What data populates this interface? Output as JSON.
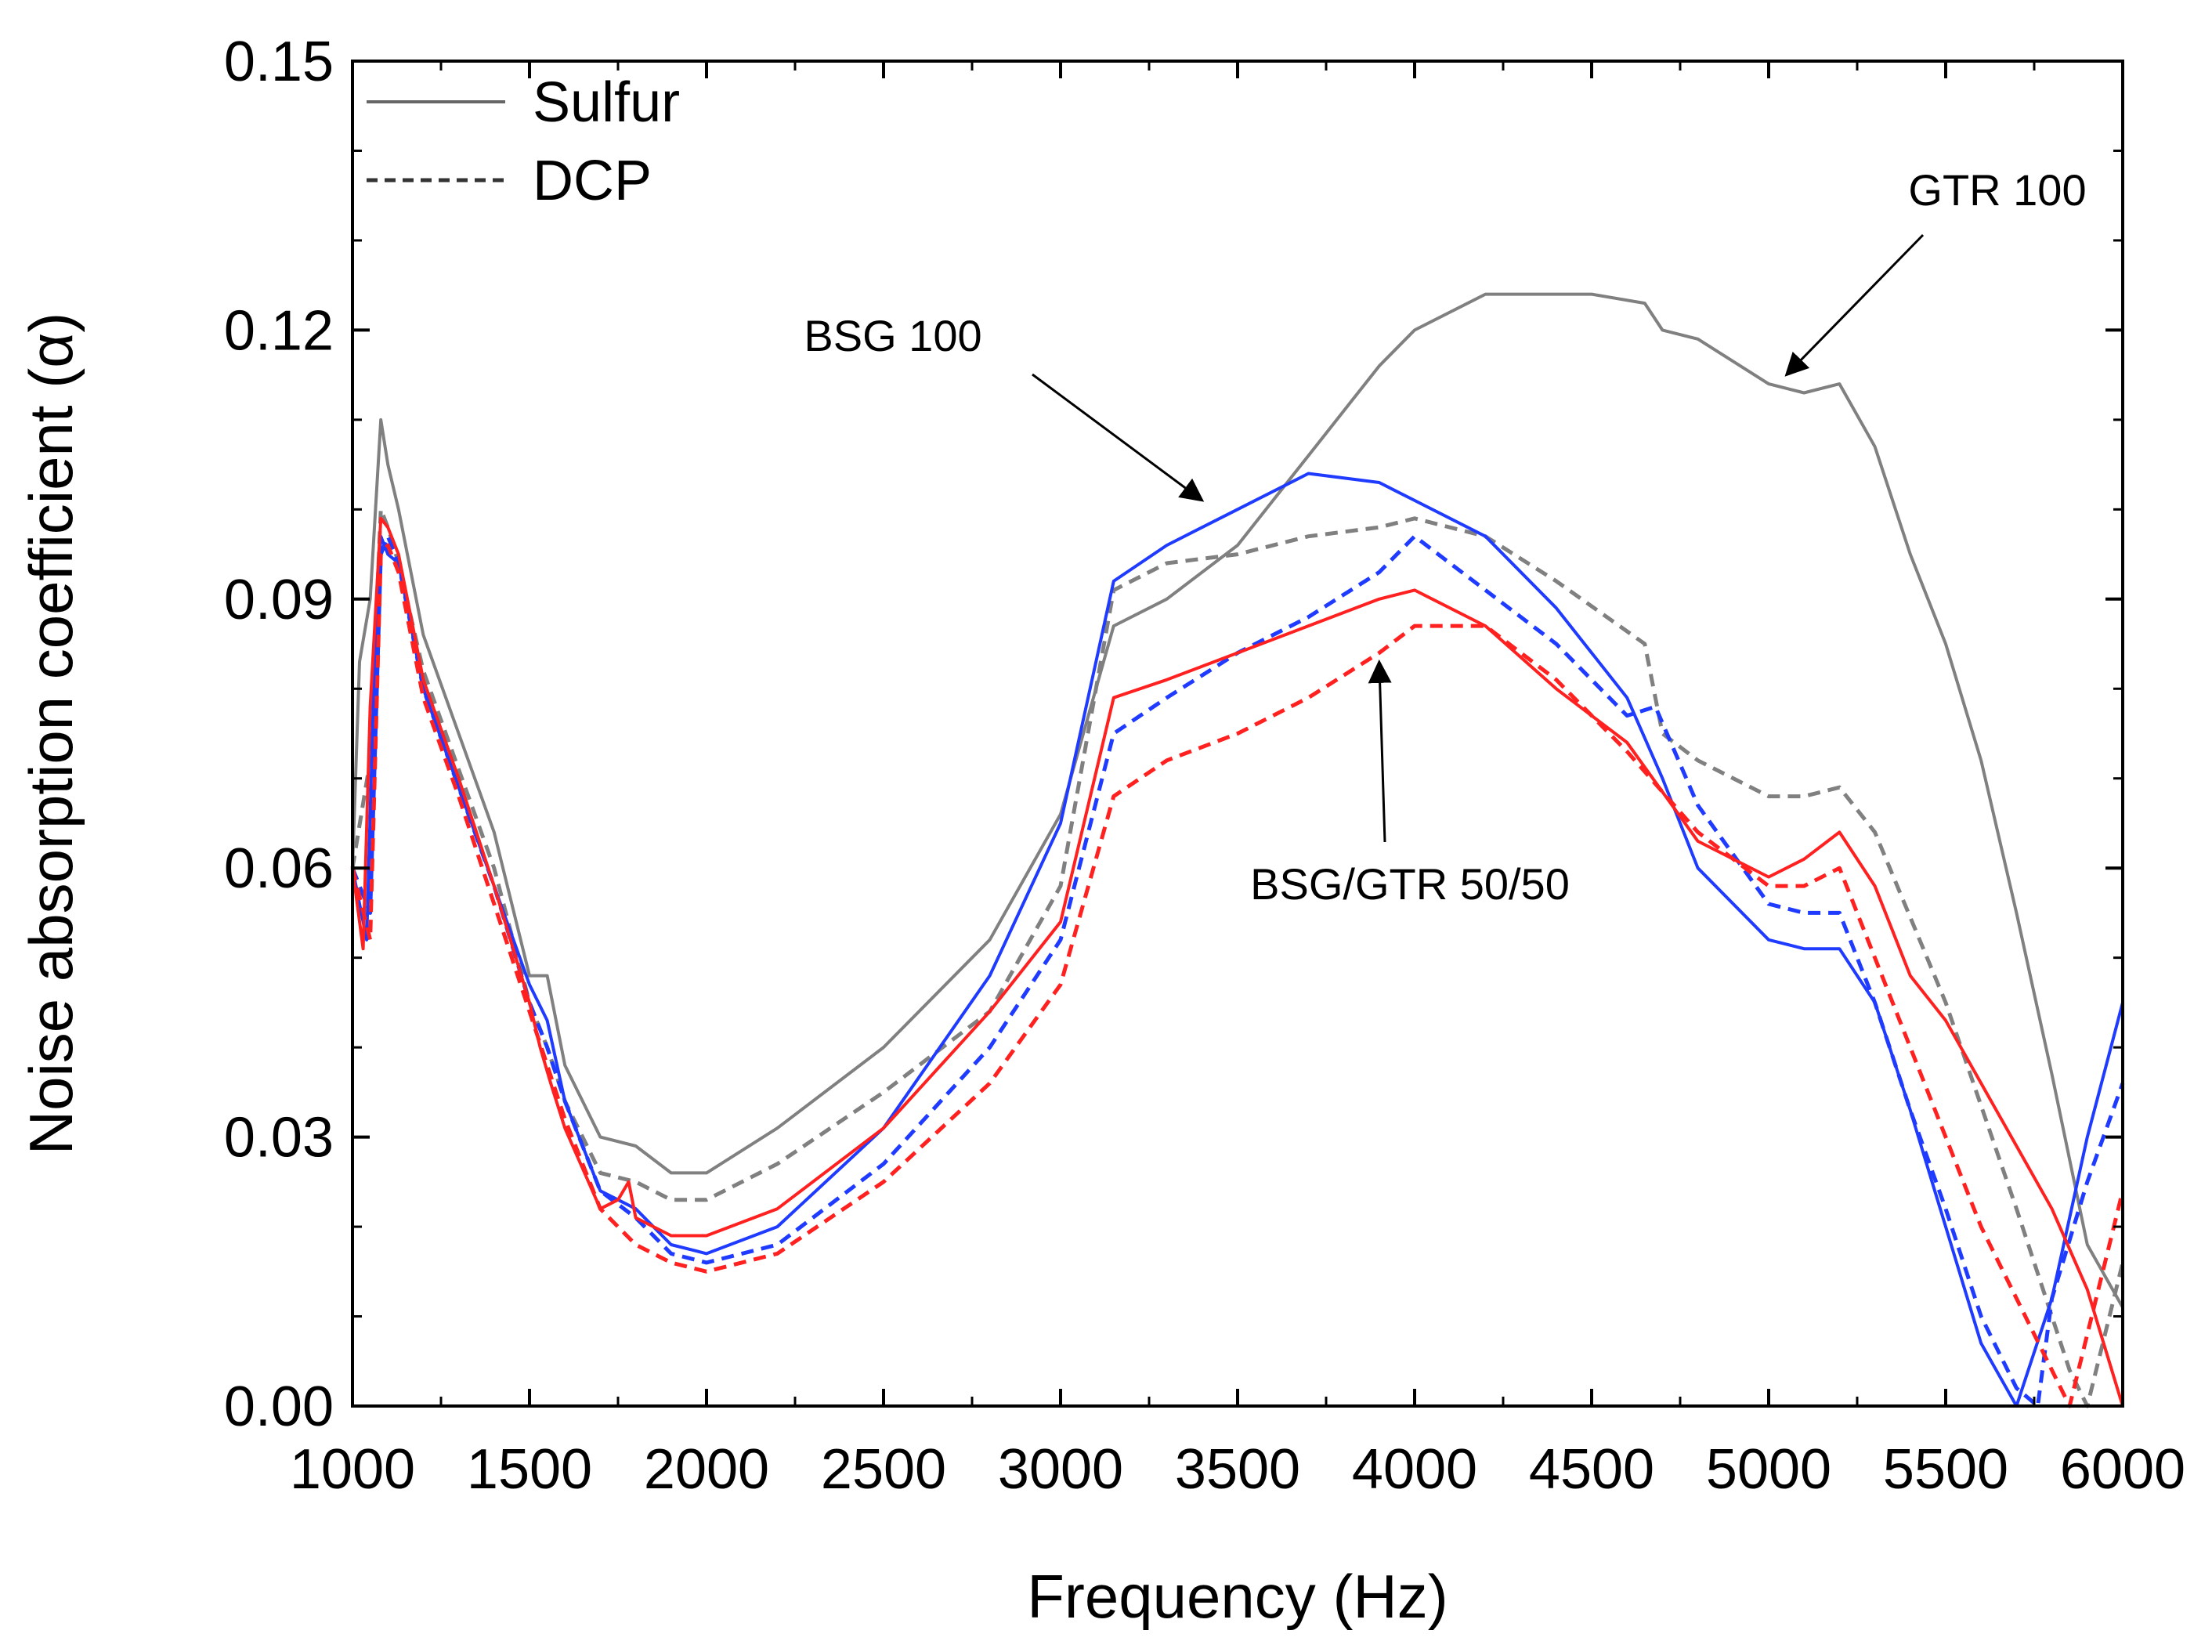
{
  "chart_data": {
    "type": "line",
    "title": "",
    "xlabel": "Frequency (Hz)",
    "ylabel": "Noise absorption coefficient (α)",
    "xlim": [
      1000,
      6000
    ],
    "ylim": [
      0.0,
      0.15
    ],
    "xticks": [
      1000,
      1500,
      2000,
      2500,
      3000,
      3500,
      4000,
      4500,
      5000,
      5500,
      6000
    ],
    "xtick_labels": [
      "1000",
      "1500",
      "2000",
      "2500",
      "3000",
      "3500",
      "4000",
      "4500",
      "5000",
      "5500",
      "6000"
    ],
    "yticks": [
      0.0,
      0.03,
      0.06,
      0.09,
      0.12,
      0.15
    ],
    "ytick_labels": [
      "0.00",
      "0.03",
      "0.06",
      "0.09",
      "0.12",
      "0.15"
    ],
    "grid": false,
    "legend": {
      "position": "top-left",
      "entries": [
        {
          "label": "Sulfur",
          "style": "solid",
          "color": "#666666"
        },
        {
          "label": "DCP",
          "style": "dashed",
          "color": "#333333"
        }
      ]
    },
    "annotations": [
      {
        "text": "GTR 100",
        "points_to": [
          5050,
          0.115
        ]
      },
      {
        "text": "BSG 100",
        "points_to": [
          3400,
          0.101
        ]
      },
      {
        "text": "BSG/GTR 50/50",
        "points_to": [
          3900,
          0.083
        ]
      }
    ],
    "series": [
      {
        "name": "GTR 100 Sulfur",
        "color": "#808080",
        "style": "solid",
        "x": [
          1000,
          1020,
          1050,
          1080,
          1100,
          1130,
          1200,
          1300,
          1400,
          1500,
          1550,
          1600,
          1700,
          1800,
          1900,
          2000,
          2200,
          2500,
          2800,
          3000,
          3150,
          3300,
          3500,
          3700,
          3900,
          4000,
          4200,
          4300,
          4500,
          4650,
          4700,
          4800,
          5000,
          5100,
          5200,
          5300,
          5400,
          5500,
          5600,
          5700,
          5800,
          5900,
          6000
        ],
        "y": [
          0.06,
          0.083,
          0.09,
          0.11,
          0.105,
          0.1,
          0.086,
          0.075,
          0.064,
          0.048,
          0.048,
          0.038,
          0.03,
          0.029,
          0.026,
          0.026,
          0.031,
          0.04,
          0.052,
          0.066,
          0.087,
          0.09,
          0.096,
          0.106,
          0.116,
          0.12,
          0.124,
          0.124,
          0.124,
          0.123,
          0.12,
          0.119,
          0.114,
          0.113,
          0.114,
          0.107,
          0.095,
          0.085,
          0.072,
          0.055,
          0.037,
          0.018,
          0.011
        ]
      },
      {
        "name": "GTR 100 DCP",
        "color": "#808080",
        "style": "dashed",
        "x": [
          1000,
          1050,
          1080,
          1100,
          1130,
          1200,
          1300,
          1400,
          1500,
          1550,
          1600,
          1700,
          1800,
          1900,
          2000,
          2200,
          2500,
          2800,
          3000,
          3150,
          3300,
          3500,
          3700,
          3900,
          4000,
          4200,
          4400,
          4650,
          4700,
          4800,
          5000,
          5100,
          5200,
          5300,
          5500,
          5700,
          5850,
          5900,
          6000
        ],
        "y": [
          0.06,
          0.072,
          0.1,
          0.098,
          0.094,
          0.082,
          0.071,
          0.06,
          0.045,
          0.04,
          0.034,
          0.026,
          0.025,
          0.023,
          0.023,
          0.027,
          0.035,
          0.044,
          0.058,
          0.091,
          0.094,
          0.095,
          0.097,
          0.098,
          0.099,
          0.097,
          0.092,
          0.085,
          0.075,
          0.072,
          0.068,
          0.068,
          0.069,
          0.064,
          0.045,
          0.022,
          0.004,
          0.0,
          0.016
        ]
      },
      {
        "name": "BSG 100 Sulfur",
        "color": "#1f3bff",
        "style": "solid",
        "x": [
          1000,
          1040,
          1060,
          1080,
          1100,
          1130,
          1200,
          1300,
          1400,
          1500,
          1550,
          1600,
          1700,
          1750,
          1800,
          1900,
          2000,
          2200,
          2500,
          2800,
          3000,
          3150,
          3300,
          3500,
          3700,
          3900,
          4000,
          4200,
          4400,
          4600,
          4700,
          4800,
          5000,
          5100,
          5200,
          5300,
          5400,
          5500,
          5600,
          5700,
          5800,
          5900,
          6000
        ],
        "y": [
          0.06,
          0.052,
          0.08,
          0.097,
          0.095,
          0.094,
          0.08,
          0.069,
          0.058,
          0.047,
          0.043,
          0.034,
          0.024,
          0.023,
          0.022,
          0.018,
          0.017,
          0.02,
          0.031,
          0.048,
          0.065,
          0.092,
          0.096,
          0.1,
          0.104,
          0.103,
          0.101,
          0.097,
          0.089,
          0.079,
          0.07,
          0.06,
          0.052,
          0.051,
          0.051,
          0.045,
          0.033,
          0.02,
          0.007,
          0.0,
          0.012,
          0.03,
          0.045
        ]
      },
      {
        "name": "BSG 100 DCP",
        "color": "#1f3bff",
        "style": "dashed",
        "x": [
          1000,
          1050,
          1080,
          1100,
          1130,
          1200,
          1300,
          1400,
          1500,
          1550,
          1600,
          1700,
          1800,
          1900,
          2000,
          2200,
          2500,
          2800,
          3000,
          3150,
          3300,
          3500,
          3700,
          3900,
          4000,
          4200,
          4400,
          4600,
          4680,
          4800,
          5000,
          5100,
          5200,
          5300,
          5400,
          5500,
          5600,
          5700,
          5760,
          5800,
          5900,
          6000
        ],
        "y": [
          0.06,
          0.055,
          0.095,
          0.097,
          0.094,
          0.08,
          0.069,
          0.058,
          0.045,
          0.04,
          0.034,
          0.024,
          0.021,
          0.017,
          0.016,
          0.018,
          0.027,
          0.04,
          0.052,
          0.075,
          0.079,
          0.084,
          0.088,
          0.093,
          0.097,
          0.091,
          0.085,
          0.077,
          0.078,
          0.067,
          0.056,
          0.055,
          0.055,
          0.045,
          0.033,
          0.022,
          0.01,
          0.002,
          0.0,
          0.012,
          0.025,
          0.036
        ]
      },
      {
        "name": "BSG/GTR 50/50 Sulfur",
        "color": "#ff2020",
        "style": "solid",
        "x": [
          1000,
          1030,
          1050,
          1080,
          1100,
          1130,
          1200,
          1300,
          1400,
          1500,
          1530,
          1560,
          1600,
          1700,
          1750,
          1780,
          1800,
          1900,
          2000,
          2200,
          2500,
          2800,
          3000,
          3150,
          3300,
          3500,
          3700,
          3900,
          4000,
          4200,
          4400,
          4600,
          4800,
          5000,
          5100,
          5200,
          5300,
          5400,
          5500,
          5600,
          5700,
          5800,
          5900,
          6000
        ],
        "y": [
          0.06,
          0.051,
          0.078,
          0.099,
          0.098,
          0.095,
          0.081,
          0.07,
          0.058,
          0.045,
          0.04,
          0.036,
          0.031,
          0.022,
          0.023,
          0.025,
          0.021,
          0.019,
          0.019,
          0.022,
          0.031,
          0.044,
          0.054,
          0.079,
          0.081,
          0.084,
          0.087,
          0.09,
          0.091,
          0.087,
          0.08,
          0.074,
          0.063,
          0.059,
          0.061,
          0.064,
          0.058,
          0.048,
          0.043,
          0.036,
          0.029,
          0.022,
          0.013,
          0.0
        ]
      },
      {
        "name": "BSG/GTR 50/50 DCP",
        "color": "#ff2020",
        "style": "dashed",
        "x": [
          1000,
          1050,
          1080,
          1100,
          1130,
          1200,
          1300,
          1400,
          1500,
          1550,
          1600,
          1700,
          1800,
          1900,
          2000,
          2200,
          2500,
          2800,
          3000,
          3150,
          3300,
          3500,
          3700,
          3900,
          4000,
          4200,
          4400,
          4600,
          4800,
          5000,
          5100,
          5200,
          5300,
          5400,
          5500,
          5600,
          5700,
          5800,
          5850,
          5900,
          6000
        ],
        "y": [
          0.06,
          0.052,
          0.095,
          0.096,
          0.093,
          0.079,
          0.068,
          0.056,
          0.044,
          0.038,
          0.032,
          0.022,
          0.018,
          0.016,
          0.015,
          0.017,
          0.025,
          0.036,
          0.047,
          0.068,
          0.072,
          0.075,
          0.079,
          0.084,
          0.087,
          0.087,
          0.081,
          0.073,
          0.064,
          0.058,
          0.058,
          0.06,
          0.05,
          0.04,
          0.03,
          0.02,
          0.012,
          0.004,
          0.0,
          0.008,
          0.024
        ]
      }
    ]
  }
}
